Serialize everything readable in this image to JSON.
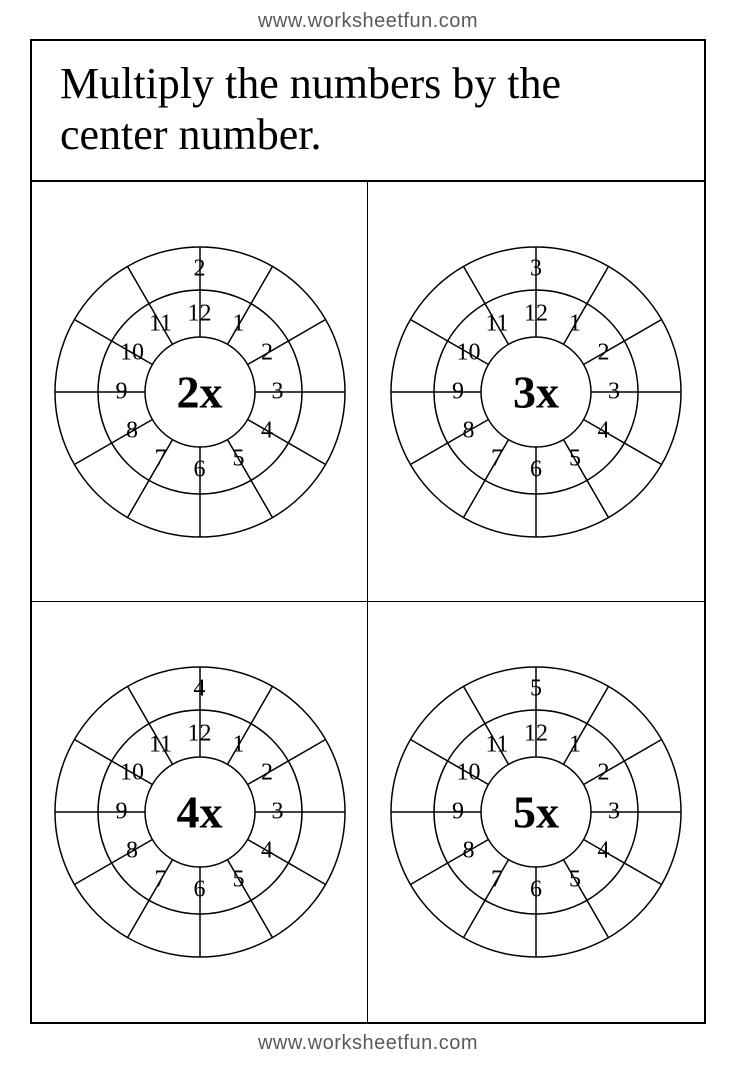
{
  "header_url": "www.worksheetfun.com",
  "footer_url": "www.worksheetfun.com",
  "instruction": "Multiply the numbers by the center number.",
  "wheel_config": {
    "outer_radius": 145,
    "middle_radius": 102,
    "inner_radius": 55,
    "segments": 12,
    "inner_label_radius": 78,
    "outer_label_radius": 123,
    "stroke": "#000000",
    "stroke_width": 1.5,
    "font_inner": 24,
    "font_center": 46
  },
  "wheels": [
    {
      "center": "2x",
      "inner_numbers": [
        "1",
        "2",
        "3",
        "4",
        "5",
        "6",
        "7",
        "8",
        "9",
        "10",
        "11",
        "12"
      ],
      "outer_top": "2"
    },
    {
      "center": "3x",
      "inner_numbers": [
        "1",
        "2",
        "3",
        "4",
        "5",
        "6",
        "7",
        "8",
        "9",
        "10",
        "11",
        "12"
      ],
      "outer_top": "3"
    },
    {
      "center": "4x",
      "inner_numbers": [
        "1",
        "2",
        "3",
        "4",
        "5",
        "6",
        "7",
        "8",
        "9",
        "10",
        "11",
        "12"
      ],
      "outer_top": "4"
    },
    {
      "center": "5x",
      "inner_numbers": [
        "1",
        "2",
        "3",
        "4",
        "5",
        "6",
        "7",
        "8",
        "9",
        "10",
        "11",
        "12"
      ],
      "outer_top": "5"
    }
  ]
}
